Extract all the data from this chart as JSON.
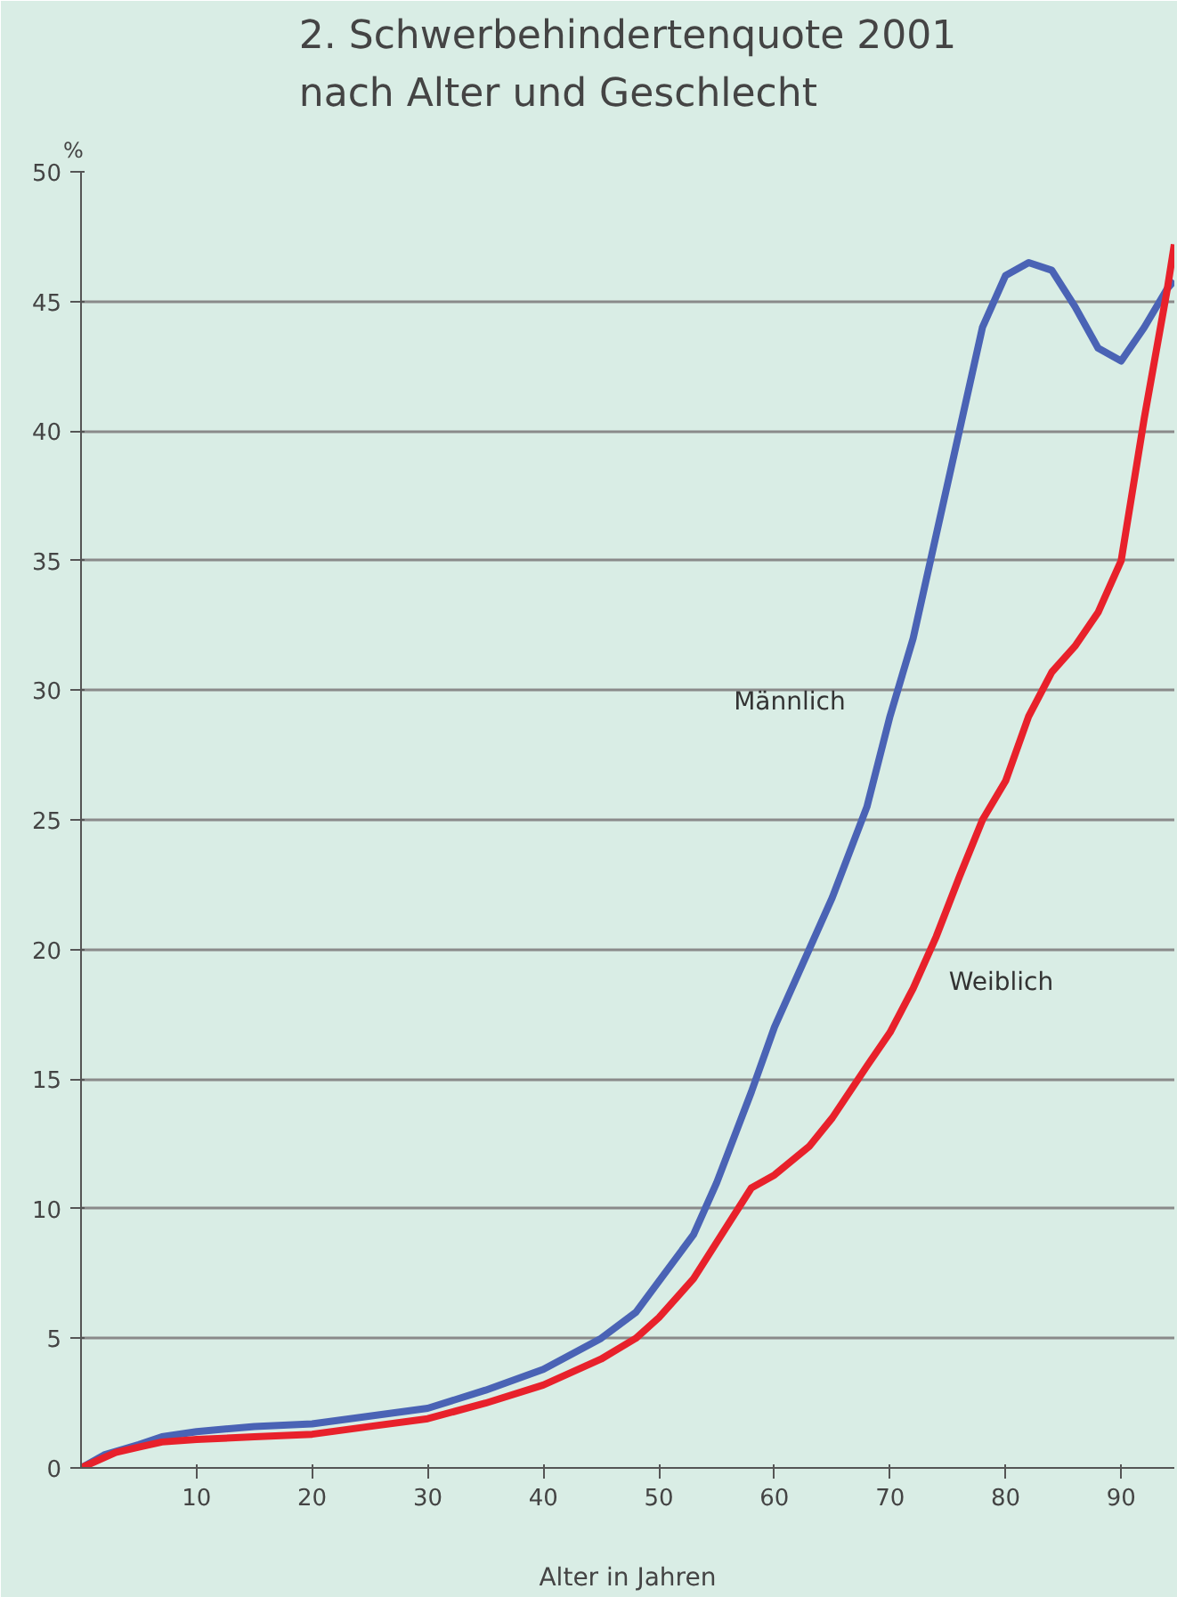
{
  "chart_data": {
    "type": "line",
    "title": "2. Schwerbehindertenquote 2001\nnach Alter und Geschlecht",
    "ylabel": "%",
    "xlabel": "Alter in Jahren",
    "xlim": [
      0,
      94.6
    ],
    "xticks": [
      10,
      20,
      30,
      40,
      50,
      60,
      70,
      80,
      90
    ],
    "ylim": [
      0,
      50
    ],
    "yticks": [
      0,
      5,
      10,
      15,
      20,
      25,
      30,
      35,
      40,
      45,
      50
    ],
    "grid": "y",
    "legend": false,
    "marker": "none",
    "line_style": "solid",
    "series": [
      {
        "name": "Männlich",
        "color": "#4a63b5",
        "x": [
          0,
          2,
          5,
          7,
          10,
          15,
          20,
          25,
          30,
          35,
          40,
          45,
          48,
          50,
          53,
          55,
          58,
          60,
          63,
          65,
          68,
          70,
          72,
          74,
          76,
          78,
          80,
          82,
          84,
          86,
          88,
          90,
          92,
          94,
          94.6
        ],
        "values": [
          0,
          0.5,
          0.9,
          1.2,
          1.4,
          1.6,
          1.7,
          2.0,
          2.3,
          3.0,
          3.8,
          5.0,
          6.0,
          7.2,
          9.0,
          11.0,
          14.5,
          17.0,
          20.0,
          22.0,
          25.5,
          29.0,
          32.0,
          36.0,
          40.0,
          44.0,
          46.0,
          46.5,
          46.2,
          44.8,
          43.2,
          42.7,
          44.0,
          45.5,
          45.8
        ]
      },
      {
        "name": "Weiblich",
        "color": "#e8212b",
        "x": [
          0,
          3,
          5,
          7,
          10,
          15,
          20,
          25,
          30,
          35,
          40,
          45,
          48,
          50,
          53,
          55,
          58,
          60,
          63,
          65,
          68,
          70,
          72,
          74,
          76,
          78,
          80,
          82,
          84,
          86,
          88,
          89,
          90,
          92,
          94,
          94.6
        ],
        "values": [
          0,
          0.6,
          0.8,
          1.0,
          1.1,
          1.2,
          1.3,
          1.6,
          1.9,
          2.5,
          3.2,
          4.2,
          5.0,
          5.8,
          7.3,
          8.7,
          10.8,
          11.3,
          12.4,
          13.5,
          15.5,
          16.8,
          18.5,
          20.5,
          22.8,
          25.0,
          26.5,
          29.0,
          30.7,
          31.7,
          33.0,
          34.0,
          35.0,
          40.5,
          45.5,
          47.2
        ]
      }
    ]
  }
}
